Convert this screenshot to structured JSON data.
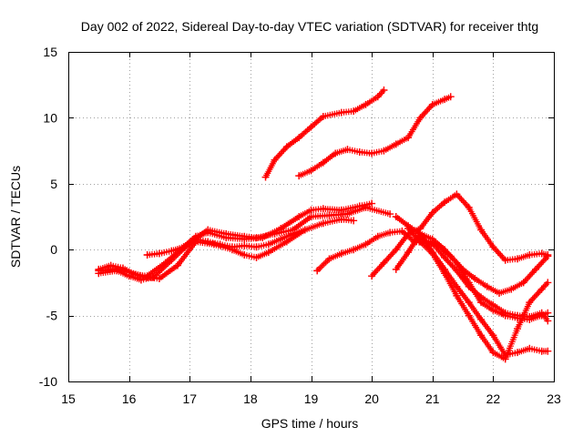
{
  "chart_data": {
    "type": "scatter",
    "title": "Day 002 of 2022, Sidereal Day-to-day VTEC variation (SDTVAR) for receiver thtg",
    "xlabel": "GPS time / hours",
    "ylabel": "SDTVAR / TECUs",
    "xlim": [
      15,
      23
    ],
    "ylim": [
      -10,
      15
    ],
    "xticks": [
      15,
      16,
      17,
      18,
      19,
      20,
      21,
      22,
      23
    ],
    "yticks": [
      -10,
      -5,
      0,
      5,
      10,
      15
    ],
    "xtick_labels": [
      "15",
      "16",
      "17",
      "18",
      "19",
      "20",
      "21",
      "22",
      "23"
    ],
    "ytick_labels": [
      "-10",
      "-5",
      "0",
      "5",
      "10",
      "15"
    ],
    "grid": true,
    "marker": "plus",
    "color": "#ff0000",
    "series": [
      {
        "name": "s1",
        "x": [
          15.5,
          15.7,
          15.9,
          16.1,
          16.3,
          16.6,
          16.9,
          17.1,
          17.3,
          17.6,
          17.9,
          18.2,
          18.5,
          18.8,
          19.0,
          19.2,
          19.5,
          19.8,
          20.0
        ],
        "y": [
          -1.5,
          -1.2,
          -1.4,
          -1.9,
          -2.0,
          -1.0,
          0.2,
          1.0,
          1.3,
          0.9,
          0.8,
          0.9,
          1.6,
          2.5,
          3.0,
          3.1,
          3.0,
          3.3,
          3.5
        ]
      },
      {
        "name": "s2",
        "x": [
          15.5,
          15.8,
          16.0,
          16.2,
          16.4,
          16.7,
          17.0,
          17.3,
          17.6,
          17.9,
          18.1,
          18.4,
          18.7,
          19.0,
          19.3,
          19.6,
          19.9,
          20.3
        ],
        "y": [
          -1.8,
          -1.6,
          -2.0,
          -2.3,
          -2.1,
          -0.8,
          0.5,
          1.5,
          1.2,
          1.0,
          0.9,
          1.2,
          1.5,
          2.5,
          2.6,
          2.7,
          3.2,
          2.7
        ]
      },
      {
        "name": "s3",
        "x": [
          15.5,
          15.8,
          16.0,
          16.3,
          16.5,
          16.8,
          17.1,
          17.4,
          17.7,
          17.9,
          18.1,
          18.3,
          18.6,
          18.9,
          19.2,
          19.5,
          19.7
        ],
        "y": [
          -1.6,
          -1.5,
          -1.7,
          -2.1,
          -2.2,
          -1.2,
          0.6,
          0.4,
          0.0,
          -0.4,
          -0.6,
          -0.2,
          0.6,
          1.5,
          2.0,
          2.3,
          2.2
        ]
      },
      {
        "name": "s4",
        "x": [
          16.3,
          16.5,
          16.7,
          16.9,
          17.1,
          17.3,
          17.5,
          17.7,
          17.9,
          18.1,
          18.3,
          18.5,
          18.7,
          18.9
        ],
        "y": [
          -0.4,
          -0.3,
          -0.1,
          0.2,
          0.8,
          0.6,
          0.4,
          0.2,
          0.3,
          0.2,
          0.4,
          0.8,
          1.2,
          1.5
        ]
      },
      {
        "name": "s5",
        "x": [
          18.25,
          18.4,
          18.6,
          18.8,
          19.0,
          19.2,
          19.5,
          19.7,
          19.9,
          20.1,
          20.2
        ],
        "y": [
          5.5,
          6.8,
          7.8,
          8.5,
          9.3,
          10.1,
          10.4,
          10.5,
          11.0,
          11.6,
          12.1
        ]
      },
      {
        "name": "s6",
        "x": [
          18.8,
          19.0,
          19.2,
          19.4,
          19.6,
          19.8,
          20.0,
          20.2,
          20.4,
          20.6,
          20.8,
          21.0,
          21.2,
          21.3
        ],
        "y": [
          5.6,
          6.0,
          6.6,
          7.3,
          7.6,
          7.4,
          7.3,
          7.5,
          8.0,
          8.5,
          10.0,
          11.0,
          11.4,
          11.6
        ]
      },
      {
        "name": "s7",
        "x": [
          19.1,
          19.3,
          19.5,
          19.7,
          19.9,
          20.1,
          20.3,
          20.5,
          20.7,
          20.9,
          21.1,
          21.3,
          21.5,
          21.7,
          21.9,
          22.1,
          22.3,
          22.5,
          22.7,
          22.9
        ],
        "y": [
          -1.6,
          -0.7,
          -0.3,
          0.0,
          0.4,
          1.0,
          1.3,
          1.4,
          0.6,
          0.5,
          0.3,
          -0.5,
          -1.5,
          -2.2,
          -2.8,
          -3.3,
          -3.0,
          -2.5,
          -1.5,
          -0.5
        ]
      },
      {
        "name": "s8",
        "x": [
          20.0,
          20.2,
          20.4,
          20.6,
          20.8,
          21.0,
          21.2,
          21.4,
          21.6,
          21.8,
          22.0,
          22.2,
          22.4,
          22.6,
          22.8,
          22.9
        ],
        "y": [
          -2.0,
          -1.0,
          0.0,
          1.2,
          1.6,
          2.8,
          3.6,
          4.2,
          3.2,
          1.5,
          0.2,
          -0.8,
          -0.7,
          -0.4,
          -0.3,
          -0.4
        ]
      },
      {
        "name": "s9",
        "x": [
          20.4,
          20.6,
          20.8,
          21.0,
          21.2,
          21.4,
          21.6,
          21.8,
          22.0,
          22.2,
          22.4,
          22.6,
          22.8,
          22.9
        ],
        "y": [
          2.5,
          1.8,
          1.2,
          -0.2,
          -1.5,
          -2.8,
          -4.0,
          -5.3,
          -6.5,
          -8.0,
          -7.8,
          -7.5,
          -7.7,
          -7.7
        ]
      },
      {
        "name": "s10",
        "x": [
          20.4,
          20.6,
          20.8,
          21.0,
          21.2,
          21.4,
          21.6,
          21.8,
          22.0,
          22.2,
          22.4,
          22.6,
          22.8,
          22.9
        ],
        "y": [
          -1.5,
          -0.2,
          1.2,
          0.8,
          0.0,
          -1.0,
          -2.5,
          -4.0,
          -4.6,
          -5.0,
          -5.2,
          -5.3,
          -5.0,
          -4.8
        ]
      },
      {
        "name": "s11",
        "x": [
          20.6,
          20.8,
          21.0,
          21.2,
          21.4,
          21.6,
          21.8,
          22.0,
          22.2,
          22.4,
          22.6,
          22.8,
          22.9
        ],
        "y": [
          1.6,
          0.6,
          -0.3,
          -1.8,
          -3.5,
          -5.0,
          -6.5,
          -7.8,
          -8.3,
          -6.0,
          -4.0,
          -3.0,
          -2.5
        ]
      },
      {
        "name": "s12",
        "x": [
          20.8,
          21.0,
          21.2,
          21.4,
          21.6,
          21.8,
          22.0,
          22.2,
          22.4,
          22.6,
          22.8,
          22.9
        ],
        "y": [
          0.8,
          0.5,
          -0.6,
          -1.6,
          -2.8,
          -3.6,
          -4.2,
          -4.8,
          -5.0,
          -5.1,
          -4.8,
          -5.4
        ]
      }
    ]
  }
}
